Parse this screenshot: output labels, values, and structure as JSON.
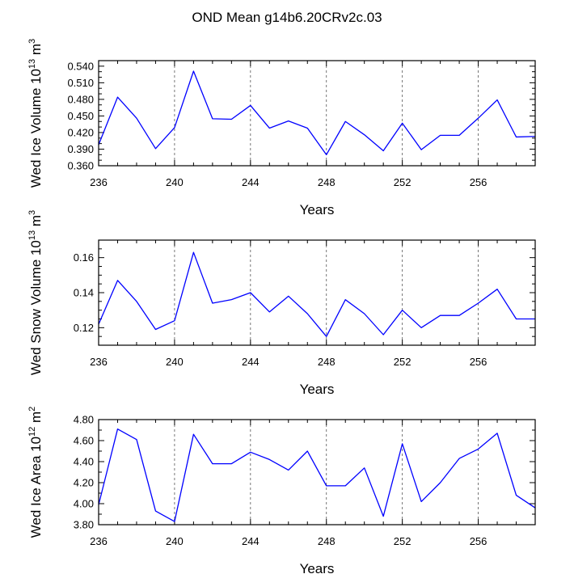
{
  "page": {
    "title": "OND Mean g14b6.20CRv2c.03"
  },
  "chart_data": [
    {
      "type": "line",
      "panel": "ice-volume",
      "title": "OND Mean g14b6.20CRv2c.03",
      "xlabel": "Years",
      "ylabel": "Wed Ice Volume 10",
      "ylabel_exp": "13",
      "ylabel_unit": " m",
      "ylabel_unit_exp": "3",
      "xlim": [
        236,
        259
      ],
      "ylim": [
        0.36,
        0.55
      ],
      "y_ticks": [
        0.36,
        0.39,
        0.42,
        0.45,
        0.48,
        0.51,
        0.54
      ],
      "y_tick_labels": [
        "0.360",
        "0.390",
        "0.420",
        "0.450",
        "0.480",
        "0.510",
        "0.540"
      ],
      "y_minor_step": 0.01,
      "x_ticks": [
        236,
        240,
        244,
        248,
        252,
        256
      ],
      "x_tick_labels": [
        "236",
        "240",
        "244",
        "248",
        "252",
        "256"
      ],
      "x_minor_step": 1,
      "vlines": [
        240,
        244,
        248,
        252,
        256
      ],
      "line_color": "#0000ff",
      "x": [
        236,
        237,
        238,
        239,
        240,
        241,
        242,
        243,
        244,
        245,
        246,
        247,
        248,
        249,
        250,
        251,
        252,
        253,
        254,
        255,
        256,
        257,
        258,
        259
      ],
      "y": [
        0.398,
        0.484,
        0.446,
        0.391,
        0.429,
        0.531,
        0.445,
        0.444,
        0.469,
        0.428,
        0.441,
        0.428,
        0.38,
        0.44,
        0.416,
        0.387,
        0.437,
        0.389,
        0.415,
        0.415,
        0.446,
        0.479,
        0.412,
        0.413
      ]
    },
    {
      "type": "line",
      "panel": "snow-volume",
      "xlabel": "Years",
      "ylabel": "Wed Snow Volume 10",
      "ylabel_exp": "13",
      "ylabel_unit": " m",
      "ylabel_unit_exp": "3",
      "xlim": [
        236,
        259
      ],
      "ylim": [
        0.11,
        0.17
      ],
      "y_ticks": [
        0.12,
        0.14,
        0.16
      ],
      "y_tick_labels": [
        "0.12",
        "0.14",
        "0.16"
      ],
      "y_minor_step": 0.005,
      "x_ticks": [
        236,
        240,
        244,
        248,
        252,
        256
      ],
      "x_tick_labels": [
        "236",
        "240",
        "244",
        "248",
        "252",
        "256"
      ],
      "x_minor_step": 1,
      "vlines": [
        240,
        244,
        248,
        252,
        256
      ],
      "line_color": "#0000ff",
      "x": [
        236,
        237,
        238,
        239,
        240,
        241,
        242,
        243,
        244,
        245,
        246,
        247,
        248,
        249,
        250,
        251,
        252,
        253,
        254,
        255,
        256,
        257,
        258,
        259
      ],
      "y": [
        0.122,
        0.147,
        0.135,
        0.119,
        0.124,
        0.163,
        0.134,
        0.136,
        0.14,
        0.129,
        0.138,
        0.128,
        0.115,
        0.136,
        0.128,
        0.116,
        0.13,
        0.12,
        0.127,
        0.127,
        0.134,
        0.142,
        0.125,
        0.125
      ]
    },
    {
      "type": "line",
      "panel": "ice-area",
      "xlabel": "Years",
      "ylabel": "Wed Ice Area 10",
      "ylabel_exp": "12",
      "ylabel_unit": " m",
      "ylabel_unit_exp": "2",
      "xlim": [
        236,
        259
      ],
      "ylim": [
        3.8,
        4.8
      ],
      "y_ticks": [
        3.8,
        4.0,
        4.2,
        4.4,
        4.6,
        4.8
      ],
      "y_tick_labels": [
        "3.80",
        "4.00",
        "4.20",
        "4.40",
        "4.60",
        "4.80"
      ],
      "y_minor_step": 0.1,
      "x_ticks": [
        236,
        240,
        244,
        248,
        252,
        256
      ],
      "x_tick_labels": [
        "236",
        "240",
        "244",
        "248",
        "252",
        "256"
      ],
      "x_minor_step": 1,
      "vlines": [
        240,
        244,
        248,
        252,
        256
      ],
      "line_color": "#0000ff",
      "x": [
        236,
        237,
        238,
        239,
        240,
        241,
        242,
        243,
        244,
        245,
        246,
        247,
        248,
        249,
        250,
        251,
        252,
        253,
        254,
        255,
        256,
        257,
        258,
        259
      ],
      "y": [
        3.99,
        4.71,
        4.61,
        3.93,
        3.83,
        4.66,
        4.38,
        4.38,
        4.49,
        4.42,
        4.32,
        4.5,
        4.17,
        4.17,
        4.34,
        3.88,
        4.57,
        4.02,
        4.2,
        4.43,
        4.52,
        4.67,
        4.08,
        3.96
      ]
    }
  ]
}
